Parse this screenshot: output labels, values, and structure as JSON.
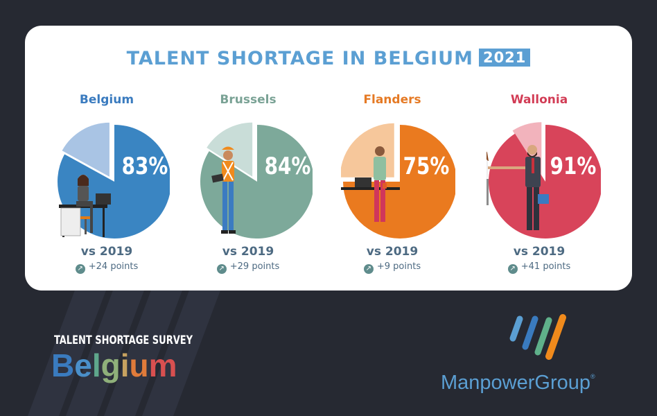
{
  "chart_data": {
    "type": "pie",
    "title": "TALENT SHORTAGE IN BELGIUM",
    "title_badge": "2021",
    "series": [
      {
        "name": "Belgium",
        "value": 83,
        "label": "83%",
        "vs_label": "vs 2019",
        "change_label": "+24 points",
        "change": 24,
        "color": "#3a85c2",
        "light_color": "#a9c4e4",
        "title_color": "#3a7bbf"
      },
      {
        "name": "Brussels",
        "value": 84,
        "label": "84%",
        "vs_label": "vs 2019",
        "change_label": "+29 points",
        "change": 29,
        "color": "#7da99a",
        "light_color": "#c9ddd8",
        "title_color": "#7aa295"
      },
      {
        "name": "Flanders",
        "value": 75,
        "label": "75%",
        "vs_label": "vs 2019",
        "change_label": "+9 points",
        "change": 9,
        "color": "#ea7a1f",
        "light_color": "#f6c79b",
        "title_color": "#e57a25"
      },
      {
        "name": "Wallonia",
        "value": 91,
        "label": "91%",
        "vs_label": "vs 2019",
        "change_label": "+41 points",
        "change": 41,
        "color": "#d8445a",
        "light_color": "#f2b3bc",
        "title_color": "#d23c55"
      }
    ]
  },
  "footer": {
    "survey_label": "TALENT SHORTAGE SURVEY",
    "country": "Belgium",
    "brand": "ManpowerGroup",
    "brand_mark": "®"
  },
  "colors": {
    "background": "#262932",
    "accent": "#5b9fd3",
    "text_muted": "#4d6a82"
  },
  "icons": [
    "trend-up-icon",
    "office-worker-icon",
    "construction-worker-icon",
    "standing-worker-icon",
    "handshake-icon",
    "manpower-logo-icon"
  ]
}
